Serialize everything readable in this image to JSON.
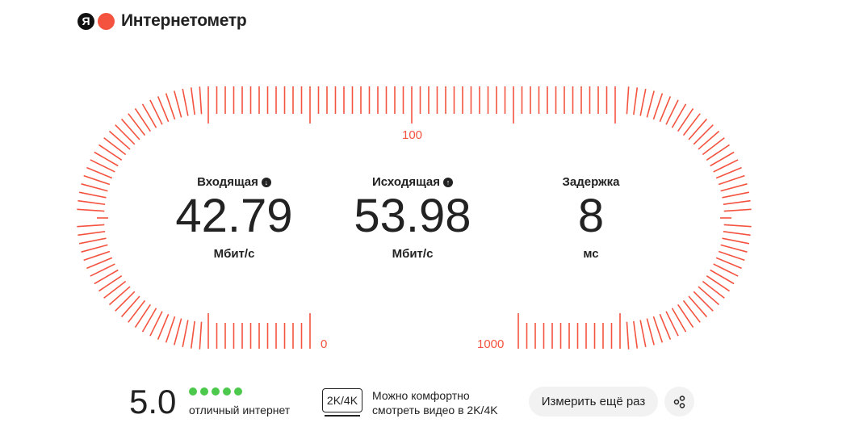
{
  "header": {
    "brand_letter": "Я",
    "title": "Интернетометр"
  },
  "gauge": {
    "labels": {
      "zero": "0",
      "hundred": "100",
      "thousand": "1000"
    },
    "accent": "#f4533f"
  },
  "metrics": [
    {
      "label": "Входящая",
      "icon": "arrow-down-circle-icon",
      "value": "42.79",
      "unit": "Мбит/с"
    },
    {
      "label": "Исходящая",
      "icon": "arrow-up-circle-icon",
      "value": "53.98",
      "unit": "Мбит/с"
    },
    {
      "label": "Задержка",
      "value": "8",
      "unit": "мс"
    }
  ],
  "rating": {
    "score": "5.0",
    "stars": 5,
    "stars_max": 5,
    "text": "отличный интернет",
    "color": "#4cc94c"
  },
  "video": {
    "badge": "2K/4K",
    "line1": "Можно комфортно",
    "line2": "смотреть видео в 2K/4K"
  },
  "actions": {
    "retest": "Измерить ещё раз",
    "share_icon": "share-icon"
  }
}
